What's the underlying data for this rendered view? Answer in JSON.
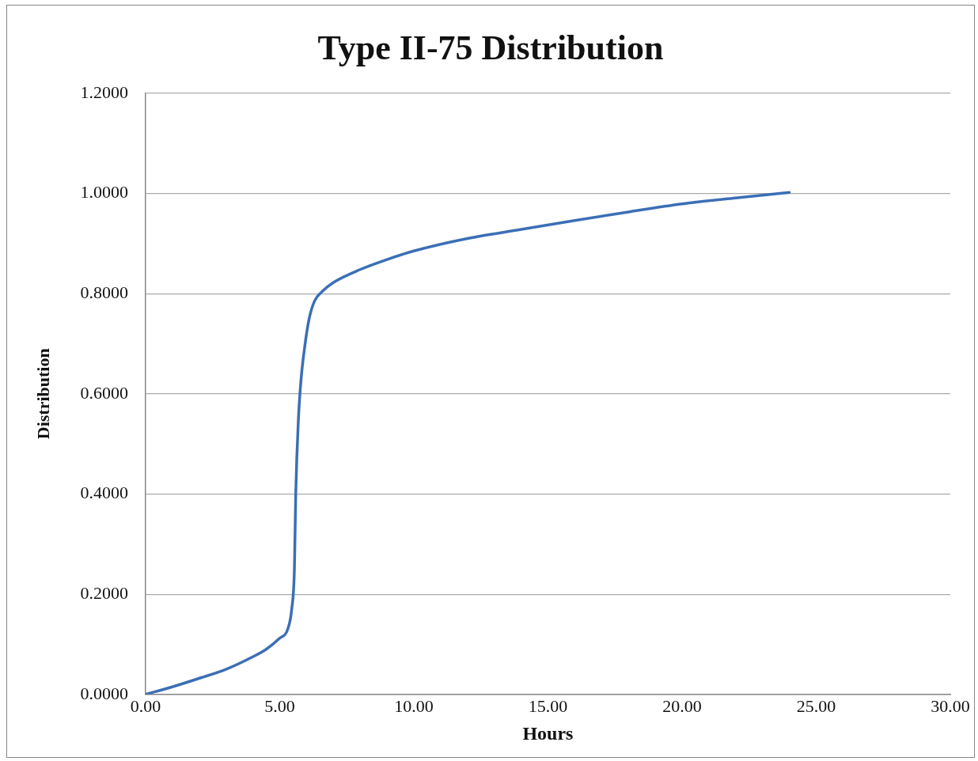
{
  "chart_data": {
    "type": "line",
    "title": "Type II-75 Distribution",
    "xlabel": "Hours",
    "ylabel": "Distribution",
    "series": [
      {
        "color": "#3b6fb6",
        "x": [
          0,
          1,
          2,
          3,
          4,
          4.5,
          5,
          5.3,
          5.45,
          5.55,
          5.6,
          5.7,
          5.8,
          5.95,
          6.1,
          6.3,
          6.6,
          7,
          8,
          9,
          10,
          12,
          14,
          16,
          18,
          20,
          22,
          24
        ],
        "values": [
          0,
          0.015,
          0.032,
          0.05,
          0.075,
          0.09,
          0.112,
          0.13,
          0.17,
          0.25,
          0.4,
          0.55,
          0.63,
          0.7,
          0.75,
          0.785,
          0.805,
          0.822,
          0.848,
          0.868,
          0.885,
          0.91,
          0.928,
          0.946,
          0.963,
          0.979,
          0.991,
          1.002
        ]
      }
    ],
    "xlim": [
      0,
      30
    ],
    "xticks": [
      {
        "value": 0,
        "label": "0.00"
      },
      {
        "value": 5,
        "label": "5.00"
      },
      {
        "value": 10,
        "label": "10.00"
      },
      {
        "value": 15,
        "label": "15.00"
      },
      {
        "value": 20,
        "label": "20.00"
      },
      {
        "value": 25,
        "label": "25.00"
      },
      {
        "value": 30,
        "label": "30.00"
      }
    ],
    "ylim": [
      0,
      1.2
    ],
    "yticks": [
      {
        "value": 0,
        "label": "0.0000"
      },
      {
        "value": 0.2,
        "label": "0.2000"
      },
      {
        "value": 0.4,
        "label": "0.4000"
      },
      {
        "value": 0.6,
        "label": "0.6000"
      },
      {
        "value": 0.8,
        "label": "0.8000"
      },
      {
        "value": 1,
        "label": "1.0000"
      },
      {
        "value": 1.2,
        "label": "1.2000"
      }
    ],
    "grid": "y",
    "marker": "none",
    "line_style": "solid"
  }
}
